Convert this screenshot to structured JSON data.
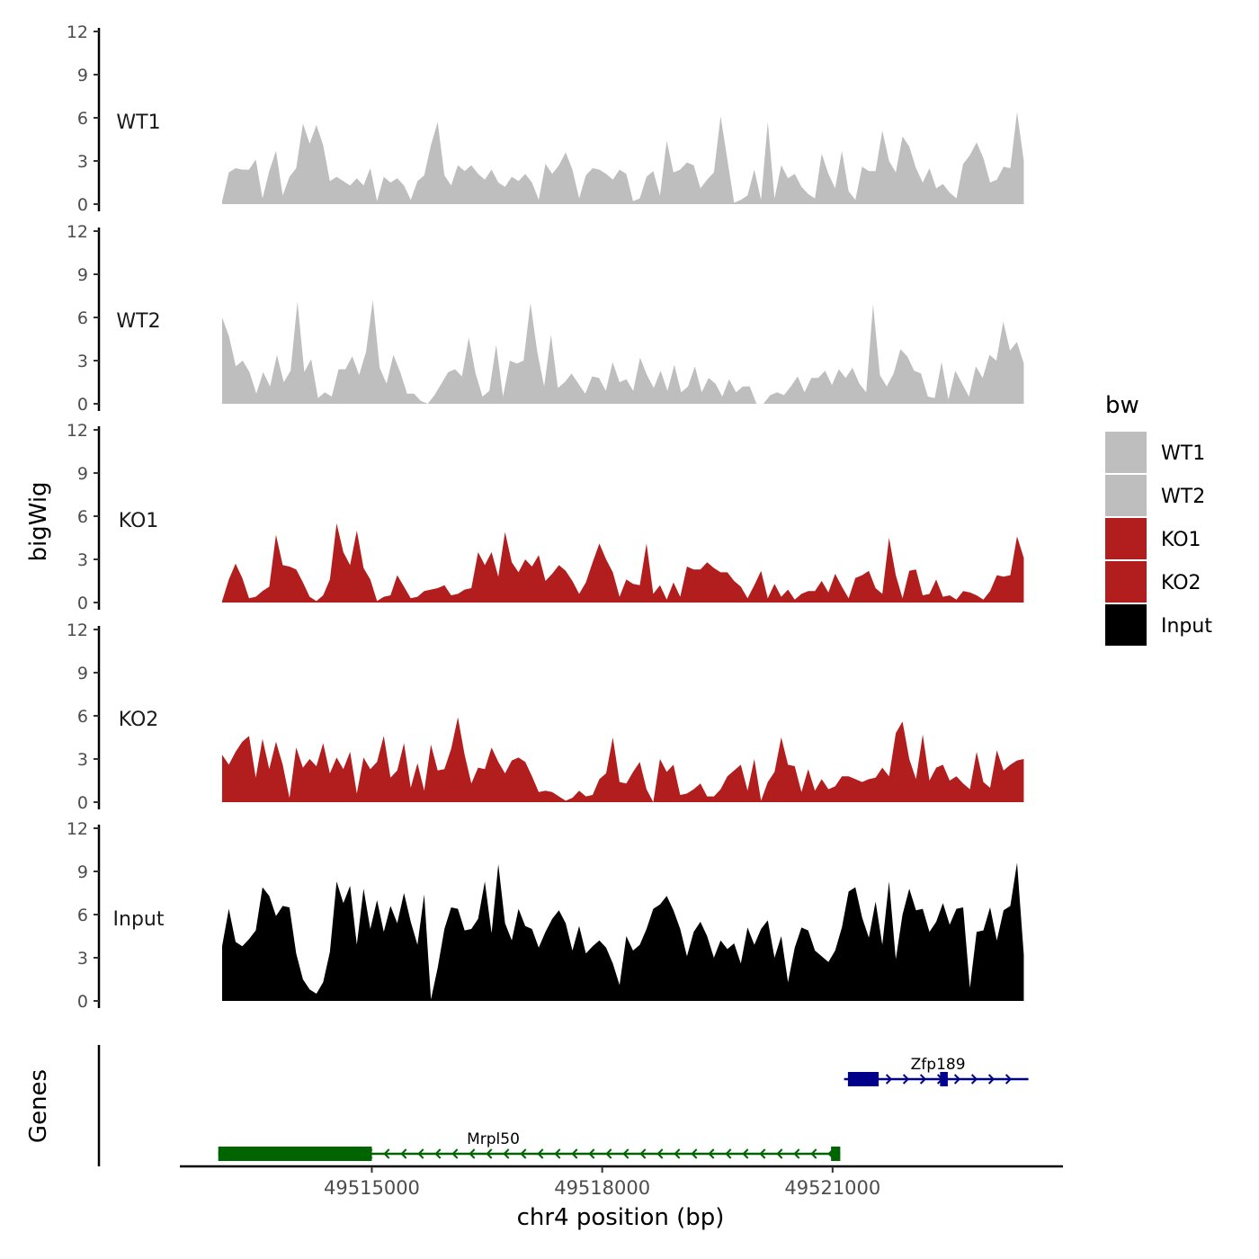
{
  "chart_data": {
    "type": "area",
    "title": "",
    "ylabel": "bigWig",
    "xlabel": "chr4 position (bp)",
    "xlim": [
      49512500,
      49524000
    ],
    "x_ticks": [
      49515000,
      49518000,
      49521000
    ],
    "x_tick_labels": [
      "49515000",
      "49518000",
      "49521000"
    ],
    "ylim": [
      0,
      12
    ],
    "y_ticks": [
      0,
      3,
      6,
      9,
      12
    ],
    "y_tick_labels": [
      "0",
      "3",
      "6",
      "9",
      "12"
    ],
    "track_start": 49513050,
    "track_end": 49523490,
    "legend": {
      "title": "bw",
      "position": "right",
      "entries": [
        {
          "label": "WT1",
          "color": "#bebebe"
        },
        {
          "label": "WT2",
          "color": "#bebebe"
        },
        {
          "label": "KO1",
          "color": "#b21e1e"
        },
        {
          "label": "KO2",
          "color": "#b21e1e"
        },
        {
          "label": "Input",
          "color": "#000000"
        }
      ]
    },
    "series": [
      {
        "name": "WT1",
        "color": "#bebebe",
        "values": [
          0.2,
          2.2,
          2.5,
          2.4,
          2.4,
          3.1,
          0.4,
          2.3,
          3.7,
          0.6,
          1.9,
          2.5,
          5.6,
          4.2,
          5.5,
          4.1,
          1.6,
          1.9,
          1.6,
          1.3,
          1.8,
          1.3,
          2.5,
          0.2,
          1.9,
          1.5,
          1.8,
          1.3,
          0.3,
          1.6,
          2.0,
          4.1,
          5.7,
          2.0,
          1.3,
          2.7,
          2.3,
          2.7,
          2.1,
          1.7,
          2.4,
          1.5,
          1.2,
          1.9,
          1.6,
          2.1,
          1.5,
          0.3,
          2.8,
          2.1,
          2.7,
          3.6,
          2.4,
          0.4,
          2.0,
          2.5,
          2.4,
          2.1,
          1.7,
          2.4,
          2.1,
          0.2,
          0.4,
          1.9,
          2.3,
          0.6,
          4.4,
          2.2,
          2.4,
          2.9,
          2.7,
          1.1,
          1.7,
          2.2,
          6.1,
          3.1,
          0.1,
          0.3,
          0.6,
          2.4,
          0.3,
          5.7,
          0.4,
          2.7,
          1.8,
          2.1,
          1.2,
          0.7,
          0.4,
          3.5,
          2.1,
          1.1,
          3.7,
          0.9,
          0.3,
          2.6,
          2.3,
          2.3,
          5.1,
          3.0,
          2.2,
          4.7,
          4.0,
          2.5,
          1.5,
          2.5,
          1.1,
          1.4,
          0.8,
          0.4,
          2.8,
          3.4,
          4.3,
          3.2,
          1.5,
          1.7,
          2.6,
          2.5,
          6.4,
          3.0
        ]
      },
      {
        "name": "WT2",
        "color": "#bebebe",
        "values": [
          6.0,
          4.7,
          2.6,
          3.0,
          2.2,
          0.7,
          2.2,
          1.2,
          3.4,
          1.5,
          2.3,
          7.1,
          2.2,
          3.1,
          0.4,
          0.8,
          0.5,
          2.4,
          2.4,
          3.3,
          2.0,
          3.6,
          7.2,
          2.5,
          1.4,
          3.4,
          2.2,
          0.7,
          0.7,
          0.2,
          0.0,
          0.6,
          1.4,
          2.2,
          2.4,
          1.9,
          4.6,
          2.1,
          0.5,
          0.9,
          4.1,
          0.5,
          3.0,
          2.8,
          3.0,
          7.0,
          3.6,
          1.2,
          4.8,
          1.1,
          1.5,
          2.1,
          1.4,
          0.7,
          1.9,
          1.8,
          0.9,
          2.9,
          1.5,
          1.7,
          0.9,
          3.2,
          2.0,
          1.1,
          2.3,
          0.9,
          2.7,
          0.8,
          1.2,
          2.6,
          0.8,
          1.8,
          1.4,
          0.5,
          1.7,
          0.8,
          1.2,
          1.2,
          0.0,
          0.0,
          0.6,
          0.8,
          0.6,
          1.2,
          1.9,
          0.8,
          1.8,
          1.8,
          2.3,
          1.3,
          2.4,
          1.8,
          2.5,
          1.4,
          0.8,
          6.9,
          2.0,
          1.2,
          2.1,
          3.8,
          3.3,
          2.3,
          2.1,
          0.5,
          0.4,
          2.9,
          0.3,
          2.3,
          1.4,
          0.5,
          2.6,
          1.8,
          3.4,
          3.0,
          5.7,
          3.7,
          4.3,
          2.8
        ]
      },
      {
        "name": "KO1",
        "color": "#b21e1e",
        "values": [
          0.1,
          1.6,
          2.7,
          1.7,
          0.3,
          0.4,
          0.8,
          1.1,
          4.7,
          2.6,
          2.5,
          2.3,
          1.4,
          0.4,
          0.1,
          0.5,
          1.6,
          5.5,
          3.5,
          2.6,
          5.0,
          2.4,
          1.6,
          0.1,
          0.4,
          0.5,
          1.9,
          1.1,
          0.3,
          0.4,
          0.8,
          0.9,
          1.0,
          1.2,
          0.5,
          0.6,
          0.9,
          1.0,
          3.5,
          2.6,
          3.5,
          1.8,
          4.9,
          2.8,
          2.1,
          3.0,
          2.5,
          3.3,
          1.5,
          2.0,
          2.6,
          2.2,
          1.5,
          0.6,
          1.4,
          2.8,
          4.1,
          3.0,
          2.1,
          0.4,
          1.6,
          1.3,
          1.2,
          4.1,
          0.6,
          1.2,
          0.2,
          1.4,
          0.4,
          2.5,
          2.3,
          2.3,
          2.8,
          2.4,
          2.1,
          2.1,
          1.5,
          1.1,
          0.3,
          1.2,
          2.2,
          0.3,
          1.3,
          0.4,
          0.9,
          0.2,
          0.6,
          0.8,
          0.8,
          1.5,
          0.7,
          2.0,
          1.1,
          0.3,
          1.7,
          1.9,
          2.2,
          1.0,
          0.6,
          4.5,
          1.9,
          0.3,
          2.2,
          2.3,
          0.5,
          0.6,
          1.6,
          0.4,
          0.5,
          0.2,
          0.8,
          0.7,
          0.5,
          0.2,
          0.8,
          1.9,
          1.8,
          1.9,
          4.6,
          3.1
        ]
      },
      {
        "name": "KO2",
        "color": "#b21e1e",
        "values": [
          3.3,
          2.6,
          3.5,
          4.2,
          4.6,
          1.7,
          4.4,
          2.3,
          4.2,
          2.6,
          0.3,
          3.8,
          2.4,
          3.0,
          2.5,
          4.1,
          2.0,
          3.1,
          2.3,
          3.5,
          0.6,
          3.1,
          2.3,
          2.8,
          4.6,
          1.7,
          2.2,
          4.1,
          1.0,
          2.7,
          0.8,
          4.0,
          2.2,
          2.3,
          3.7,
          5.9,
          3.3,
          1.3,
          2.4,
          2.3,
          3.8,
          2.8,
          2.0,
          2.9,
          3.1,
          2.8,
          1.8,
          0.7,
          0.8,
          0.7,
          0.4,
          0.1,
          0.3,
          0.8,
          0.4,
          0.5,
          1.6,
          2.0,
          4.5,
          1.4,
          1.3,
          2.1,
          2.8,
          0.9,
          0.0,
          3.0,
          2.1,
          2.6,
          0.5,
          0.6,
          0.9,
          1.3,
          0.4,
          0.4,
          0.9,
          1.8,
          2.2,
          2.6,
          0.8,
          3.0,
          0.1,
          1.4,
          2.1,
          4.5,
          2.6,
          2.5,
          0.7,
          2.3,
          0.8,
          1.6,
          0.9,
          1.1,
          1.8,
          1.8,
          1.6,
          1.4,
          1.6,
          1.7,
          2.4,
          1.8,
          4.8,
          5.6,
          3.0,
          1.6,
          4.7,
          1.5,
          2.4,
          2.6,
          1.5,
          1.8,
          1.3,
          0.9,
          3.5,
          1.4,
          1.0,
          3.6,
          2.2,
          2.6,
          2.9,
          3.0
        ]
      },
      {
        "name": "Input",
        "color": "#000000",
        "values": [
          3.8,
          6.4,
          4.1,
          3.8,
          4.3,
          4.9,
          7.9,
          7.3,
          5.9,
          6.6,
          6.5,
          3.3,
          1.5,
          0.8,
          0.5,
          1.3,
          3.4,
          8.3,
          6.8,
          8.0,
          3.9,
          7.8,
          5.0,
          7.0,
          4.8,
          6.6,
          5.4,
          7.5,
          5.5,
          3.9,
          7.4,
          0.1,
          2.3,
          5.0,
          6.5,
          6.4,
          4.9,
          5.0,
          5.7,
          8.3,
          4.7,
          9.5,
          5.4,
          4.2,
          6.4,
          5.2,
          5.0,
          3.7,
          4.8,
          5.7,
          6.3,
          5.4,
          3.5,
          5.2,
          3.3,
          3.8,
          4.2,
          3.7,
          2.6,
          1.1,
          4.5,
          3.5,
          3.9,
          5.0,
          6.4,
          6.7,
          7.3,
          6.3,
          5.0,
          3.1,
          4.8,
          5.5,
          4.5,
          3.0,
          4.2,
          3.6,
          4.0,
          2.6,
          5.1,
          3.9,
          5.0,
          5.6,
          3.0,
          4.5,
          1.3,
          3.7,
          5.1,
          4.9,
          3.5,
          3.1,
          2.7,
          3.5,
          5.1,
          7.6,
          7.9,
          5.8,
          4.4,
          6.9,
          3.9,
          8.3,
          2.9,
          6.0,
          7.8,
          6.3,
          6.4,
          4.8,
          5.5,
          6.8,
          5.3,
          6.4,
          6.5,
          0.9,
          4.8,
          4.9,
          6.5,
          4.2,
          6.3,
          6.6,
          9.6,
          3.2
        ]
      }
    ],
    "genes": [
      {
        "name": "Mrpl50",
        "strand": "-",
        "color": "#006400",
        "start": 49513000,
        "end": 49521100,
        "exons": [
          [
            49513000,
            49515000
          ],
          [
            49520980,
            49521100
          ]
        ],
        "row": 2
      },
      {
        "name": "Zfp189",
        "strand": "+",
        "color": "#00008b",
        "start": 49521150,
        "end": 49523550,
        "exons": [
          [
            49521200,
            49521600
          ],
          [
            49522400,
            49522500
          ]
        ],
        "row": 1
      }
    ],
    "genes_ylabel": "Genes"
  }
}
